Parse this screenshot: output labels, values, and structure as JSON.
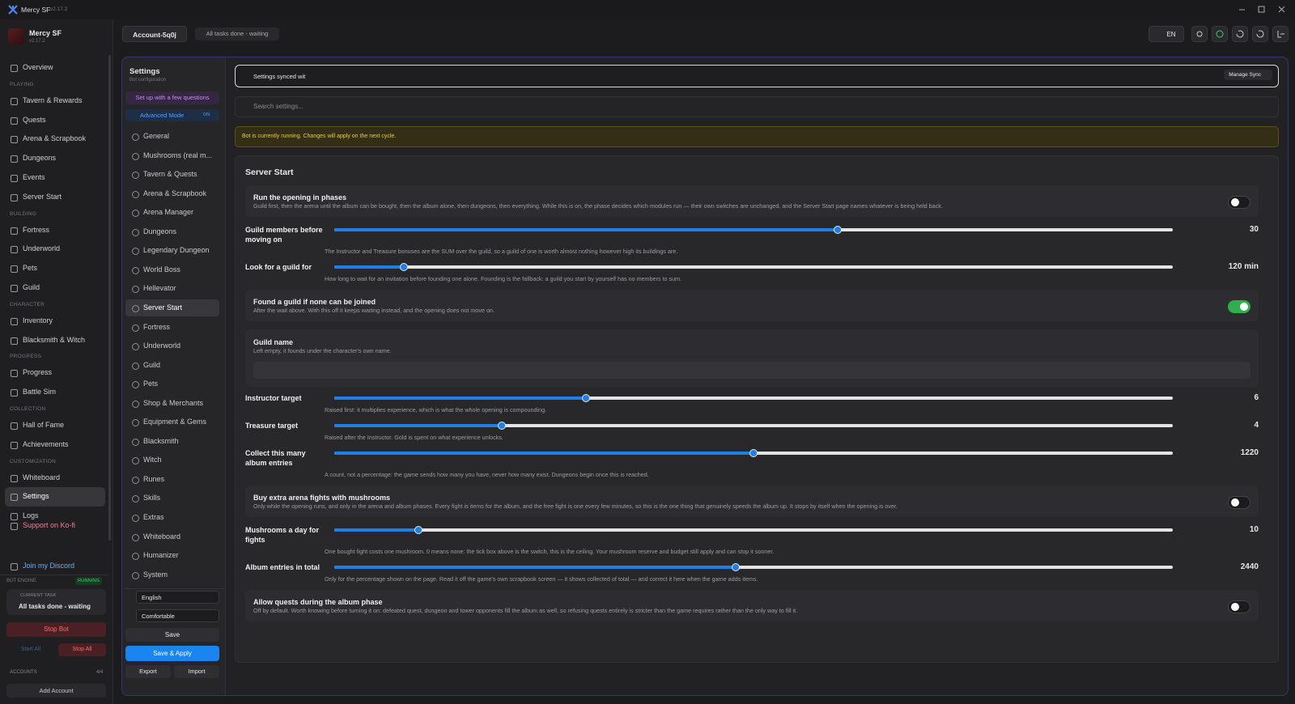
{
  "app": {
    "name": "Mercy SF",
    "version": "v2.17.2"
  },
  "sidebar": {
    "profile_name": "Mercy SF",
    "profile_version": "v2.17.2",
    "groups": [
      {
        "items": [
          "Overview"
        ]
      },
      {
        "heading": "PLAYING",
        "items": [
          "Tavern & Rewards",
          "Quests",
          "Arena & Scrapbook",
          "Dungeons",
          "Events",
          "Server Start"
        ]
      },
      {
        "heading": "BUILDING",
        "items": [
          "Fortress",
          "Underworld",
          "Pets",
          "Guild"
        ]
      },
      {
        "heading": "CHARACTER",
        "items": [
          "Inventory",
          "Blacksmith & Witch"
        ]
      },
      {
        "heading": "PROGRESS",
        "items": [
          "Progress",
          "Battle Sim"
        ]
      },
      {
        "heading": "COLLECTION",
        "items": [
          "Hall of Fame",
          "Achievements"
        ]
      },
      {
        "heading": "CUSTOMIZATION",
        "items": [
          "Whiteboard",
          "Settings",
          "Logs"
        ],
        "selected": 1
      }
    ],
    "support": "Support on Ko-fi",
    "discord": "Join my Discord"
  },
  "engine": {
    "label": "BOT ENGINE",
    "status": "RUNNING",
    "task_label": "CURRENT TASK",
    "task": "All tasks done - waiting",
    "stop_bot": "Stop Bot",
    "start_all": "Start All",
    "stop_all": "Stop All"
  },
  "accounts": {
    "label": "ACCOUNTS",
    "count": "4/4",
    "add": "Add Account"
  },
  "topbar": {
    "account": "Account-5q0j",
    "status": "All tasks done - waiting",
    "language": "EN"
  },
  "settings_nav": {
    "title": "Settings",
    "subtitle": "Bot configuration",
    "wizard": "Set up with a few questions",
    "mode": "Advanced Mode",
    "mode_state": "ON",
    "items": [
      "General",
      "Mushrooms (real m...",
      "Tavern & Quests",
      "Arena & Scrapbook",
      "Arena Manager",
      "Dungeons",
      "Legendary Dungeon",
      "World Boss",
      "Hellevator",
      "Server Start",
      "Fortress",
      "Underworld",
      "Guild",
      "Pets",
      "Shop & Merchants",
      "Equipment & Gems",
      "Blacksmith",
      "Witch",
      "Runes",
      "Skills",
      "Extras",
      "Whiteboard",
      "Humanizer",
      "System"
    ],
    "selected": 9,
    "language_select": "English",
    "density_select": "Comfortable",
    "save": "Save",
    "save_apply": "Save & Apply",
    "export": "Export",
    "import": "Import"
  },
  "main": {
    "sync": "Settings synced wit",
    "manage_sync": "Manage Sync",
    "search_placeholder": "Search settings...",
    "notice": "Bot is currently running. Changes will apply on the next cycle.",
    "section": "Server Start",
    "rows": [
      {
        "type": "toggle",
        "title": "Run the opening in phases",
        "description": "Guild first, then the arena until the album can be bought, then the album alone, then dungeons, then everything. While this is on, the phase decides which modules run — their own switches are unchanged, and the Server Start page names whatever is being held back.",
        "on": false
      },
      {
        "type": "slider",
        "title": "Guild members before moving on",
        "value": 30,
        "range": [
          0,
          50
        ],
        "description": "The Instructor and Treasure bonuses are the SUM over the guild, so a guild of one is worth almost nothing however high its buildings are."
      },
      {
        "type": "slider",
        "title": "Look for a guild for",
        "value": 120,
        "value_label": "120 min",
        "range": [
          0,
          1440
        ],
        "description": "How long to wait for an invitation before founding one alone. Founding is the fallback: a guild you start by yourself has no members to sum."
      },
      {
        "type": "toggle",
        "title": "Found a guild if none can be joined",
        "description": "After the wait above. With this off it keeps waiting instead, and the opening does not move on.",
        "on": true
      },
      {
        "type": "text",
        "title": "Guild name",
        "description": "Left empty, it founds under the character's own name."
      },
      {
        "type": "slider",
        "title": "Instructor target",
        "value": 6,
        "range": [
          0,
          20
        ],
        "description": "Raised first: it multiplies experience, which is what the whole opening is compounding."
      },
      {
        "type": "slider",
        "title": "Treasure target",
        "value": 4,
        "range": [
          0,
          20
        ],
        "description": "Raised after the Instructor. Gold is spent on what experience unlocks."
      },
      {
        "type": "slider",
        "title": "Collect this many album entries",
        "value": 1220,
        "range": [
          0,
          2440
        ],
        "description": "A count, not a percentage: the game sends how many you have, never how many exist. Dungeons begin once this is reached."
      },
      {
        "type": "toggle",
        "title": "Buy extra arena fights with mushrooms",
        "description": "Only while the opening runs, and only in the arena and album phases. Every fight is items for the album, and the free fight is one every few minutes, so this is the one thing that genuinely speeds the album up. It stops by itself when the opening is over.",
        "on": false
      },
      {
        "type": "slider",
        "title": "Mushrooms a day for fights",
        "value": 10,
        "range": [
          0,
          100
        ],
        "description": "One bought fight costs one mushroom. 0 means none: the tick box above is the switch, this is the ceiling. Your mushroom reserve and budget still apply and can stop it sooner."
      },
      {
        "type": "slider",
        "title": "Album entries in total",
        "value": 2440,
        "range": [
          0,
          5100
        ],
        "description": "Only for the percentage shown on the page. Read it off the game's own scrapbook screen — it shows collected of total — and correct it here when the game adds items."
      },
      {
        "type": "toggle",
        "title": "Allow quests during the album phase",
        "description": "Off by default. Worth knowing before turning it on: defeated quest, dungeon and tower opponents fill the album as well, so refusing quests entirely is stricter than the game requires rather than the only way to fill it.",
        "on": false
      }
    ]
  }
}
